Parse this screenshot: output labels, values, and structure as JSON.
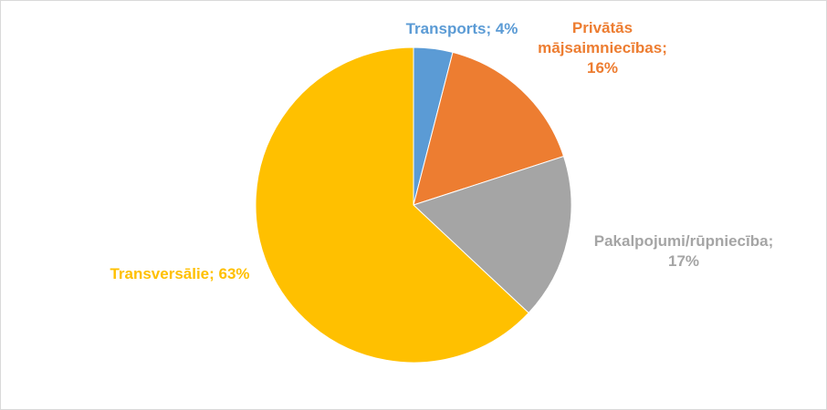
{
  "chart_data": {
    "type": "pie",
    "title": "",
    "slices": [
      {
        "category": "Transports",
        "value": 4,
        "label_lines": [
          "Transports; 4%"
        ],
        "color": "#5b9bd5"
      },
      {
        "category": "Privātās mājsaimniecības",
        "value": 16,
        "label_lines": [
          "Privātās",
          "mājsaimniecības;",
          "16%"
        ],
        "color": "#ed7d31"
      },
      {
        "category": "Pakalpojumi/rūpniecība",
        "value": 17,
        "label_lines": [
          "Pakalpojumi/rūpniecība;",
          "17%"
        ],
        "color": "#a5a5a5"
      },
      {
        "category": "Transversālie",
        "value": 63,
        "label_lines": [
          "Transversālie; 63%"
        ],
        "color": "#ffc000"
      }
    ],
    "legend": "none"
  }
}
